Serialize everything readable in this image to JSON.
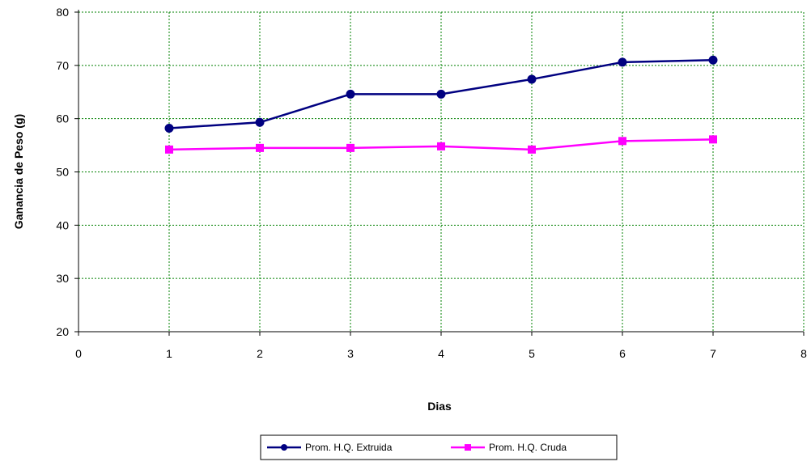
{
  "chart_data": {
    "type": "line",
    "title": "",
    "xlabel": "Dias",
    "ylabel": "Ganancia de Peso (g)",
    "xlim": [
      0,
      8
    ],
    "ylim": [
      20,
      80
    ],
    "xticks": [
      0,
      1,
      2,
      3,
      4,
      5,
      6,
      7,
      8
    ],
    "yticks": [
      20,
      30,
      40,
      50,
      60,
      70,
      80
    ],
    "grid": true,
    "legend_position": "bottom",
    "series": [
      {
        "name": "Prom. H.Q. Extruida",
        "color": "#000080",
        "marker": "circle",
        "x": [
          1,
          2,
          3,
          4,
          5,
          6,
          7
        ],
        "values": [
          58.2,
          59.3,
          64.6,
          64.6,
          67.4,
          70.6,
          71.0
        ]
      },
      {
        "name": "Prom. H.Q. Cruda",
        "color": "#ff00ff",
        "marker": "square",
        "x": [
          1,
          2,
          3,
          4,
          5,
          6,
          7
        ],
        "values": [
          54.2,
          54.5,
          54.5,
          54.8,
          54.2,
          55.8,
          56.1
        ]
      }
    ],
    "grid_color": "#008000"
  }
}
